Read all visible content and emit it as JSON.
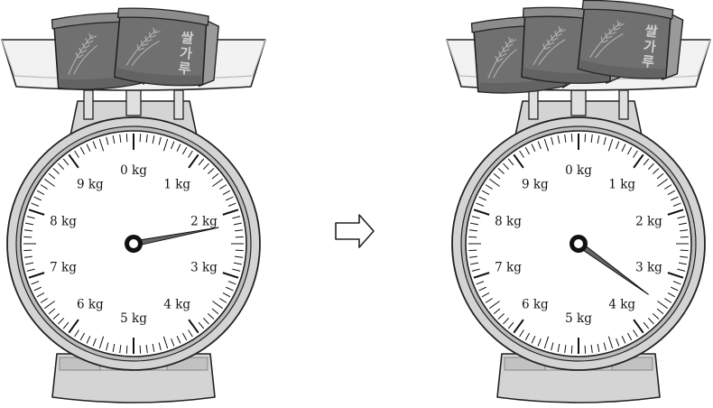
{
  "dial_labels": [
    "0 kg",
    "1 kg",
    "2 kg",
    "3 kg",
    "4 kg",
    "5 kg",
    "6 kg",
    "7 kg",
    "8 kg",
    "9 kg"
  ],
  "bag_label": "쌀가루",
  "scales": [
    {
      "reading_kg": 2.2,
      "bag_count": 2
    },
    {
      "reading_kg": 3.5,
      "bag_count": 3
    }
  ],
  "arrow_icon": "right-arrow-icon",
  "colors": {
    "outline": "#222222",
    "scale_body": "#d4d4d4",
    "bag": "#707070",
    "dial_face": "#ffffff"
  }
}
